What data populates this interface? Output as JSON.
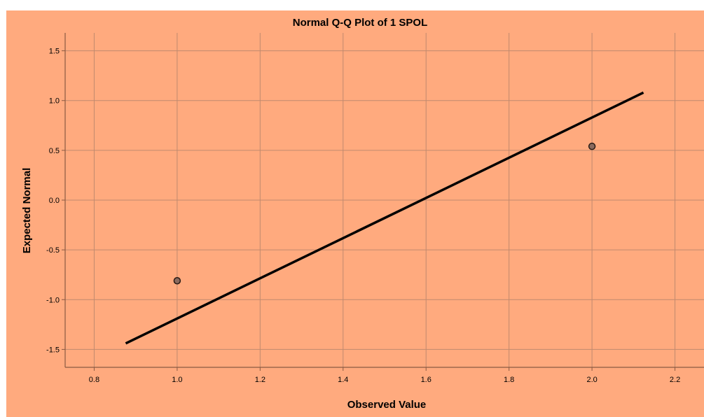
{
  "chart_data": {
    "type": "scatter",
    "title": "Normal Q-Q Plot of 1 SPOL",
    "xlabel": "Observed Value",
    "ylabel": "Expected Normal",
    "xlim": [
      0.73,
      2.27
    ],
    "ylim": [
      -1.68,
      1.68
    ],
    "x_ticks": [
      "0.8",
      "1.0",
      "1.2",
      "1.4",
      "1.6",
      "1.8",
      "2.0",
      "2.2"
    ],
    "y_ticks": [
      "1.5",
      "1.0",
      "0.5",
      "0.0",
      "-0.5",
      "-1.0",
      "-1.5"
    ],
    "grid": true,
    "points": [
      {
        "x": 1.0,
        "y": -0.81
      },
      {
        "x": 2.0,
        "y": 0.54
      }
    ],
    "reference_line": {
      "x": [
        0.876,
        2.124
      ],
      "y": [
        -1.44,
        1.08
      ]
    },
    "colors": {
      "background": "#ffaa7e",
      "grid": "#c08a6e",
      "axis": "#8a5a42",
      "line": "#000000",
      "point_fill": "#8a6a5e",
      "point_stroke": "#2a1a14"
    }
  }
}
